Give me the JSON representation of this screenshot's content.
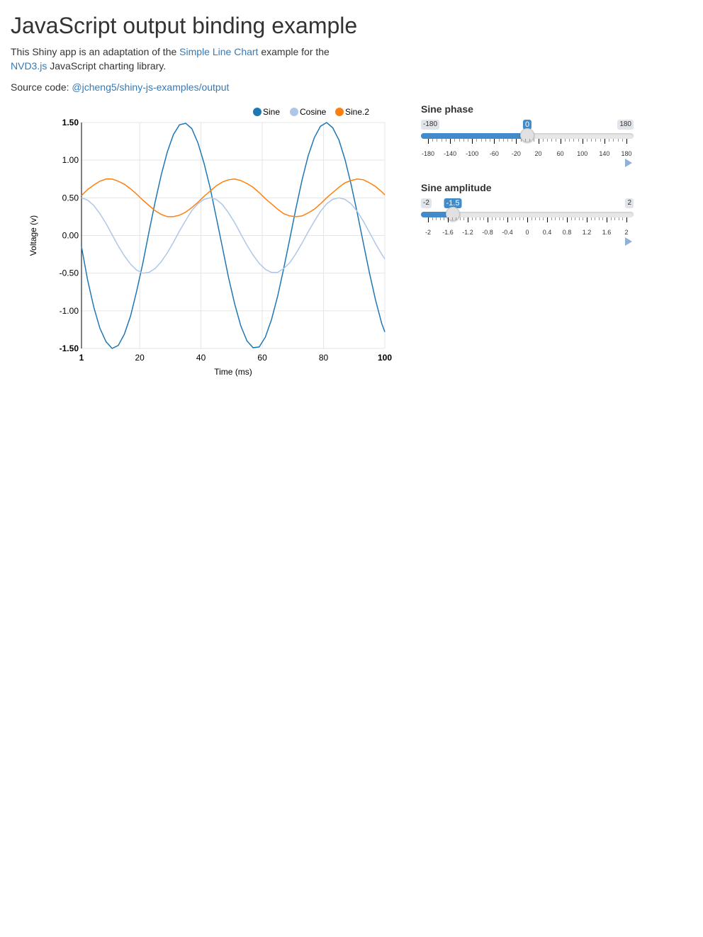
{
  "header": {
    "title": "JavaScript output binding example"
  },
  "intro": {
    "text_before": "This Shiny app is an adaptation of the ",
    "link1": "Simple Line Chart",
    "text_middle": " example for the ",
    "link2": "NVD3.js",
    "text_after": " JavaScript charting library."
  },
  "source": {
    "label": "Source code: ",
    "link": "@jcheng5/shiny-js-examples/output"
  },
  "colors": {
    "link": "#337ab7",
    "slider_fill": "#428bca"
  },
  "controls": {
    "phase": {
      "label": "Sine phase",
      "min_label": "-180",
      "max_label": "180",
      "value_label": "0",
      "min": -180,
      "max": 180,
      "value": 0,
      "ticks": [
        "-180",
        "-140",
        "-100",
        "-60",
        "-20",
        "20",
        "60",
        "100",
        "140",
        "180"
      ],
      "play_icon": "play-icon"
    },
    "amplitude": {
      "label": "Sine amplitude",
      "min_label": "-2",
      "max_label": "2",
      "value_label": "-1.5",
      "min": -2,
      "max": 2,
      "value": -1.5,
      "ticks": [
        "-2",
        "-1.6",
        "-1.2",
        "-0.8",
        "-0.4",
        "0",
        "0.4",
        "0.8",
        "1.2",
        "1.6",
        "2"
      ],
      "play_icon": "play-icon"
    }
  },
  "chart_data": {
    "type": "line",
    "xlabel": "Time (ms)",
    "ylabel": "Voltage (v)",
    "xlim": [
      1,
      100
    ],
    "ylim": [
      -1.5,
      1.5
    ],
    "x_ticks": [
      "1",
      "20",
      "40",
      "60",
      "80",
      "100"
    ],
    "y_ticks": [
      "1.50",
      "1.00",
      "0.50",
      "0.00",
      "-0.50",
      "-1.00",
      "-1.50"
    ],
    "grid": true,
    "legend_position": "top-right",
    "x": [
      1,
      3,
      5,
      7,
      9,
      11,
      13,
      15,
      17,
      19,
      21,
      23,
      25,
      27,
      29,
      31,
      33,
      35,
      37,
      39,
      41,
      43,
      45,
      47,
      49,
      51,
      53,
      55,
      57,
      59,
      61,
      63,
      65,
      67,
      69,
      71,
      73,
      75,
      77,
      79,
      81,
      83,
      85,
      87,
      89,
      91,
      93,
      95,
      97,
      99,
      100
    ],
    "series": [
      {
        "name": "Sine",
        "color": "#1f77b4",
        "values": [
          -0.15,
          -0.59,
          -0.95,
          -1.23,
          -1.41,
          -1.5,
          -1.46,
          -1.31,
          -1.07,
          -0.74,
          -0.37,
          0.04,
          0.44,
          0.8,
          1.11,
          1.34,
          1.47,
          1.49,
          1.42,
          1.23,
          0.96,
          0.63,
          0.24,
          -0.16,
          -0.56,
          -0.91,
          -1.2,
          -1.4,
          -1.49,
          -1.48,
          -1.35,
          -1.12,
          -0.81,
          -0.44,
          -0.04,
          0.36,
          0.74,
          1.06,
          1.3,
          1.45,
          1.5,
          1.43,
          1.27,
          1.01,
          0.68,
          0.3,
          -0.1,
          -0.5,
          -0.86,
          -1.17,
          -1.28
        ]
      },
      {
        "name": "Cosine",
        "color": "#aec7e8",
        "values": [
          0.5,
          0.47,
          0.4,
          0.29,
          0.16,
          0.01,
          -0.14,
          -0.27,
          -0.38,
          -0.46,
          -0.5,
          -0.49,
          -0.44,
          -0.35,
          -0.23,
          -0.09,
          0.06,
          0.2,
          0.33,
          0.42,
          0.48,
          0.5,
          0.48,
          0.41,
          0.3,
          0.17,
          0.02,
          -0.13,
          -0.26,
          -0.37,
          -0.45,
          -0.49,
          -0.49,
          -0.44,
          -0.36,
          -0.24,
          -0.1,
          0.05,
          0.19,
          0.32,
          0.42,
          0.48,
          0.5,
          0.48,
          0.42,
          0.32,
          0.19,
          0.04,
          -0.11,
          -0.25,
          -0.31
        ]
      },
      {
        "name": "Sine.2",
        "color": "#ff7f0e",
        "values": [
          0.53,
          0.61,
          0.67,
          0.72,
          0.75,
          0.75,
          0.72,
          0.68,
          0.62,
          0.55,
          0.47,
          0.4,
          0.33,
          0.28,
          0.25,
          0.25,
          0.27,
          0.31,
          0.37,
          0.44,
          0.52,
          0.59,
          0.66,
          0.71,
          0.74,
          0.75,
          0.73,
          0.69,
          0.64,
          0.57,
          0.49,
          0.42,
          0.35,
          0.29,
          0.26,
          0.25,
          0.26,
          0.3,
          0.35,
          0.42,
          0.5,
          0.57,
          0.64,
          0.7,
          0.73,
          0.75,
          0.74,
          0.7,
          0.65,
          0.58,
          0.54
        ]
      }
    ]
  }
}
